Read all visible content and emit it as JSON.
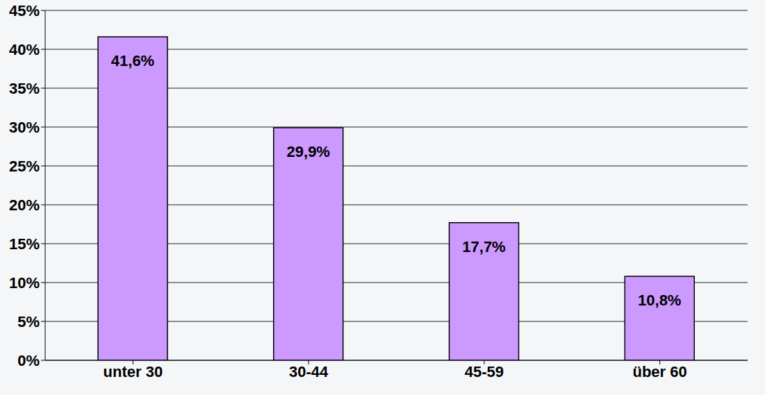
{
  "chart_data": {
    "type": "bar",
    "categories": [
      "unter 30",
      "30-44",
      "45-59",
      "über 60"
    ],
    "values": [
      41.6,
      29.9,
      17.7,
      10.8
    ],
    "value_labels": [
      "41,6%",
      "29,9%",
      "17,7%",
      "10,8%"
    ],
    "data_labels": true,
    "color": "#cc99ff",
    "ylim": [
      0,
      45
    ],
    "yticks": [
      {
        "value": 0,
        "label": "0%"
      },
      {
        "value": 5,
        "label": "5%"
      },
      {
        "value": 10,
        "label": "10%"
      },
      {
        "value": 15,
        "label": "15%"
      },
      {
        "value": 20,
        "label": "20%"
      },
      {
        "value": 25,
        "label": "25%"
      },
      {
        "value": 30,
        "label": "30%"
      },
      {
        "value": 35,
        "label": "35%"
      },
      {
        "value": 40,
        "label": "40%"
      },
      {
        "value": 45,
        "label": "45%"
      }
    ],
    "grid": true
  }
}
